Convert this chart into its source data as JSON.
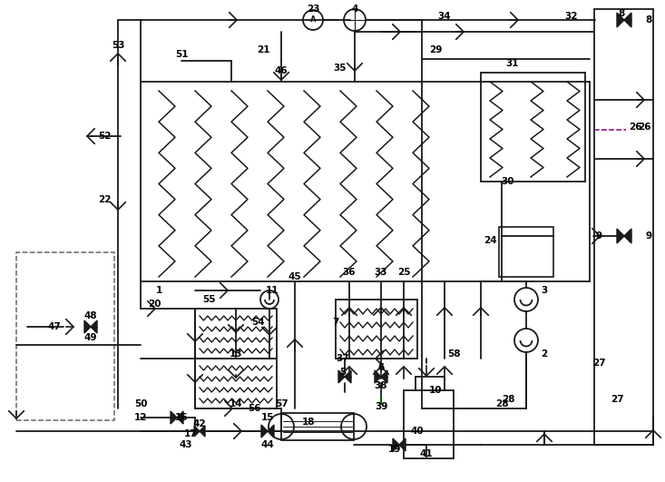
{
  "bg": "#ffffff",
  "lc": "#1a1a1a",
  "gc": "#006600",
  "pc": "#800080",
  "figw": 7.33,
  "figh": 5.31,
  "dpi": 100
}
